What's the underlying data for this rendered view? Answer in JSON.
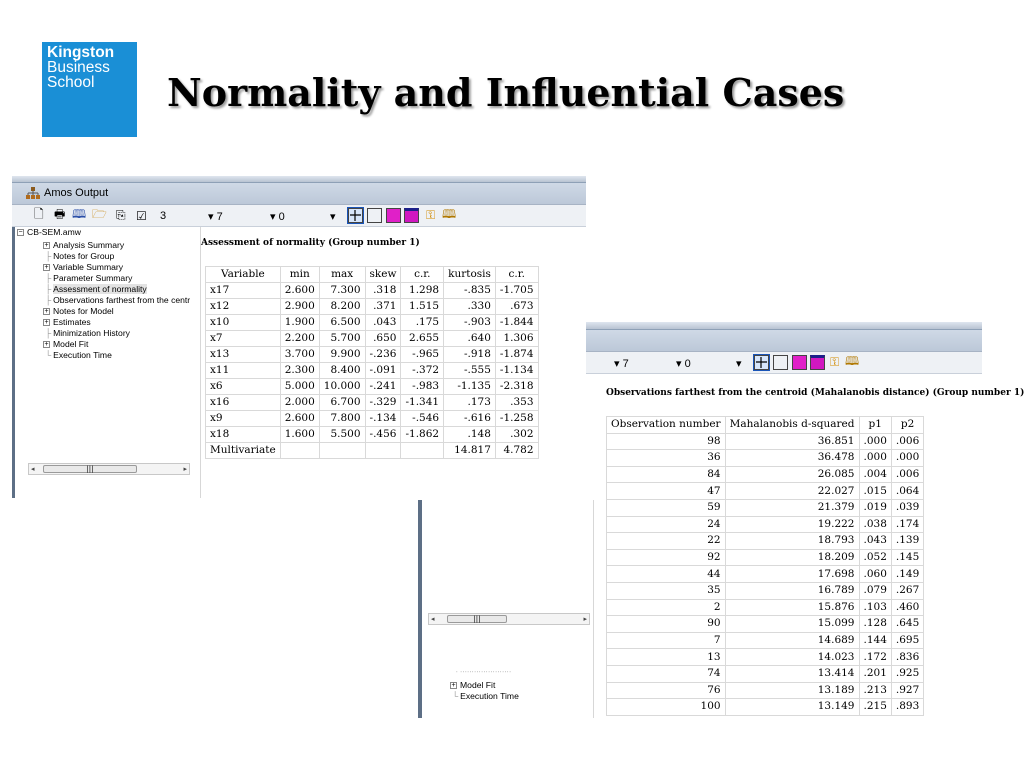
{
  "logo": {
    "line1": "Kingston",
    "line2": "Business",
    "line3": "School"
  },
  "slide": {
    "title": "Normality and Influential Cases"
  },
  "amos_window": {
    "title": "Amos Output",
    "toolbar": {
      "number": "3",
      "combo1": "7",
      "combo2": "0"
    },
    "tree": {
      "root": "CB-SEM.amw",
      "items": [
        "Analysis Summary",
        "Notes for Group",
        "Variable Summary",
        "Parameter Summary",
        "Assessment of normality",
        "Observations farthest from the centr",
        "Notes for Model",
        "Estimates",
        "Minimization History",
        "Model Fit",
        "Execution Time"
      ]
    },
    "normality": {
      "heading": "Assessment of normality (Group number 1)",
      "columns": [
        "Variable",
        "min",
        "max",
        "skew",
        "c.r.",
        "kurtosis",
        "c.r."
      ],
      "rows": [
        [
          "x17",
          "2.600",
          "7.300",
          ".318",
          "1.298",
          "-.835",
          "-1.705"
        ],
        [
          "x12",
          "2.900",
          "8.200",
          ".371",
          "1.515",
          ".330",
          ".673"
        ],
        [
          "x10",
          "1.900",
          "6.500",
          ".043",
          ".175",
          "-.903",
          "-1.844"
        ],
        [
          "x7",
          "2.200",
          "5.700",
          ".650",
          "2.655",
          ".640",
          "1.306"
        ],
        [
          "x13",
          "3.700",
          "9.900",
          "-.236",
          "-.965",
          "-.918",
          "-1.874"
        ],
        [
          "x11",
          "2.300",
          "8.400",
          "-.091",
          "-.372",
          "-.555",
          "-1.134"
        ],
        [
          "x6",
          "5.000",
          "10.000",
          "-.241",
          "-.983",
          "-1.135",
          "-2.318"
        ],
        [
          "x16",
          "2.000",
          "6.700",
          "-.329",
          "-1.341",
          ".173",
          ".353"
        ],
        [
          "x9",
          "2.600",
          "7.800",
          "-.134",
          "-.546",
          "-.616",
          "-1.258"
        ],
        [
          "x18",
          "1.600",
          "5.500",
          "-.456",
          "-1.862",
          ".148",
          ".302"
        ],
        [
          "Multivariate",
          "",
          "",
          "",
          "",
          "14.817",
          "4.782"
        ]
      ]
    }
  },
  "mahal_window": {
    "toolbar": {
      "combo1": "7",
      "combo2": "0"
    },
    "tree": {
      "items": [
        "Minimization History",
        "Model Fit",
        "Execution Time"
      ]
    },
    "heading": "Observations farthest from the centroid (Mahalanobis distance) (Group number 1)",
    "columns": [
      "Observation number",
      "Mahalanobis d-squared",
      "p1",
      "p2"
    ],
    "rows": [
      [
        "98",
        "36.851",
        ".000",
        ".006"
      ],
      [
        "36",
        "36.478",
        ".000",
        ".000"
      ],
      [
        "84",
        "26.085",
        ".004",
        ".006"
      ],
      [
        "47",
        "22.027",
        ".015",
        ".064"
      ],
      [
        "59",
        "21.379",
        ".019",
        ".039"
      ],
      [
        "24",
        "19.222",
        ".038",
        ".174"
      ],
      [
        "22",
        "18.793",
        ".043",
        ".139"
      ],
      [
        "92",
        "18.209",
        ".052",
        ".145"
      ],
      [
        "44",
        "17.698",
        ".060",
        ".149"
      ],
      [
        "35",
        "16.789",
        ".079",
        ".267"
      ],
      [
        "2",
        "15.876",
        ".103",
        ".460"
      ],
      [
        "90",
        "15.099",
        ".128",
        ".645"
      ],
      [
        "7",
        "14.689",
        ".144",
        ".695"
      ],
      [
        "13",
        "14.023",
        ".172",
        ".836"
      ],
      [
        "74",
        "13.414",
        ".201",
        ".925"
      ],
      [
        "76",
        "13.189",
        ".213",
        ".927"
      ],
      [
        "100",
        "13.149",
        ".215",
        ".893"
      ]
    ]
  },
  "colors": {
    "logo_bg": "#1a8fd6",
    "magenta": "#e020c8",
    "toolbar_bg": "#eef1f5"
  },
  "icons": [
    "print-preview-icon",
    "print-icon",
    "book-icon",
    "open-folder-icon",
    "copy-icon",
    "options-icon",
    "tree-icon",
    "box-icon",
    "magenta-box-icon",
    "help-icon",
    "book-help-icon"
  ]
}
